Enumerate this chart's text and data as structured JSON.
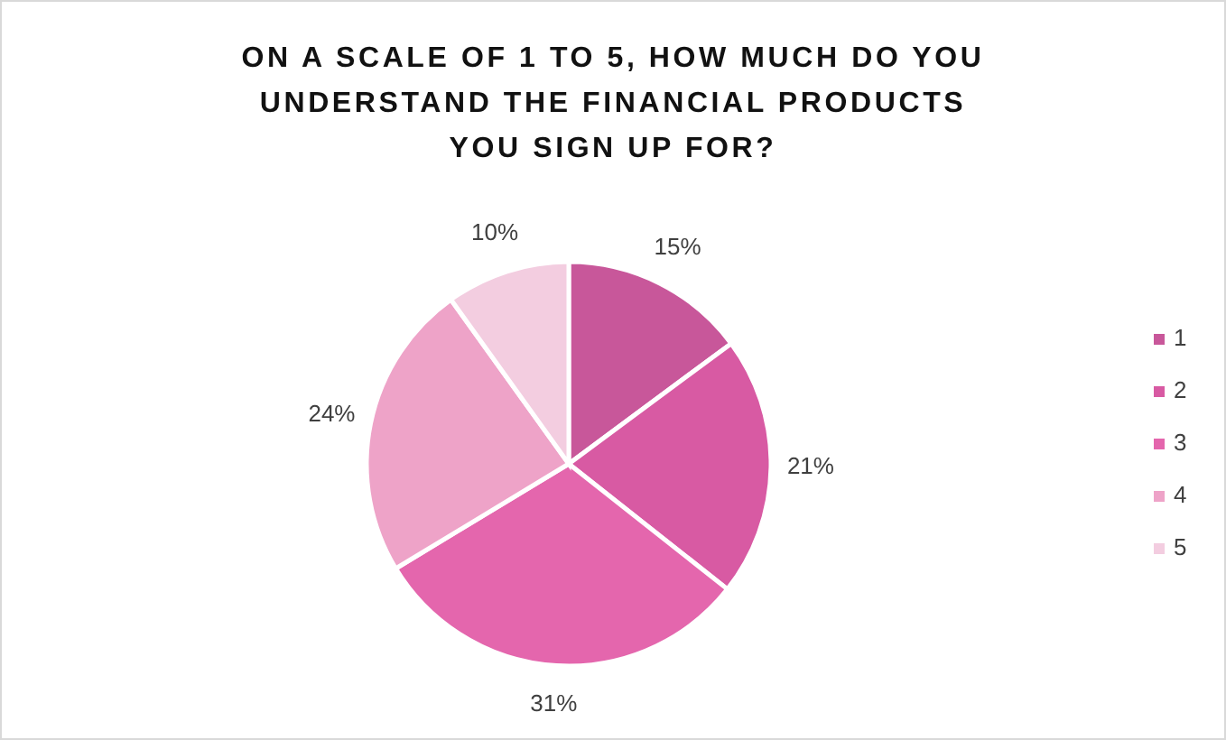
{
  "chart_data": {
    "type": "pie",
    "title": "ON A SCALE OF 1 TO 5, HOW MUCH DO YOU UNDERSTAND THE FINANCIAL PRODUCTS YOU SIGN UP FOR?",
    "categories": [
      "1",
      "2",
      "3",
      "4",
      "5"
    ],
    "values": [
      15,
      21,
      31,
      24,
      10
    ],
    "colors": [
      "#c8579a",
      "#d85aa3",
      "#e466ad",
      "#eea3c8",
      "#f3cde0"
    ],
    "value_labels": [
      "15%",
      "21%",
      "31%",
      "24%",
      "10%"
    ],
    "legend": "right"
  }
}
